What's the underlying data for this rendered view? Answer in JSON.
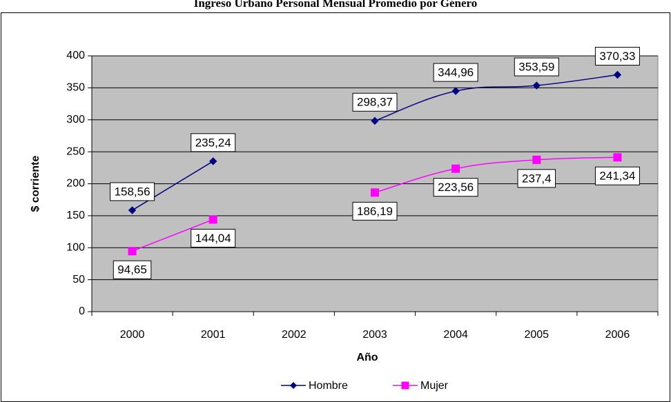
{
  "chart_data": {
    "type": "line",
    "title": "Ingreso Urbano Personal Mensual Promedio por Género",
    "xlabel": "Año",
    "ylabel": "$ corriente",
    "categories": [
      "2000",
      "2001",
      "2002",
      "2003",
      "2004",
      "2005",
      "2006"
    ],
    "ylim": [
      0,
      400
    ],
    "yticks": [
      "0",
      "50",
      "100",
      "150",
      "200",
      "250",
      "300",
      "350",
      "400"
    ],
    "grid": true,
    "legend": "bottom",
    "series": [
      {
        "name": "Hombre",
        "color": "#000080",
        "marker": "diamond",
        "values": [
          158.56,
          235.24,
          null,
          298.37,
          344.96,
          353.59,
          370.33
        ],
        "labels": [
          "158,56",
          "235,24",
          "",
          "298,37",
          "344,96",
          "353,59",
          "370,33"
        ]
      },
      {
        "name": "Mujer",
        "color": "#FF00FF",
        "marker": "square",
        "values": [
          94.65,
          144.04,
          null,
          186.19,
          223.56,
          237.4,
          241.34
        ],
        "labels": [
          "94,65",
          "144,04",
          "",
          "186,19",
          "223,56",
          "237,4",
          "241,34"
        ]
      }
    ],
    "plot_background": "#C0C0C0"
  }
}
